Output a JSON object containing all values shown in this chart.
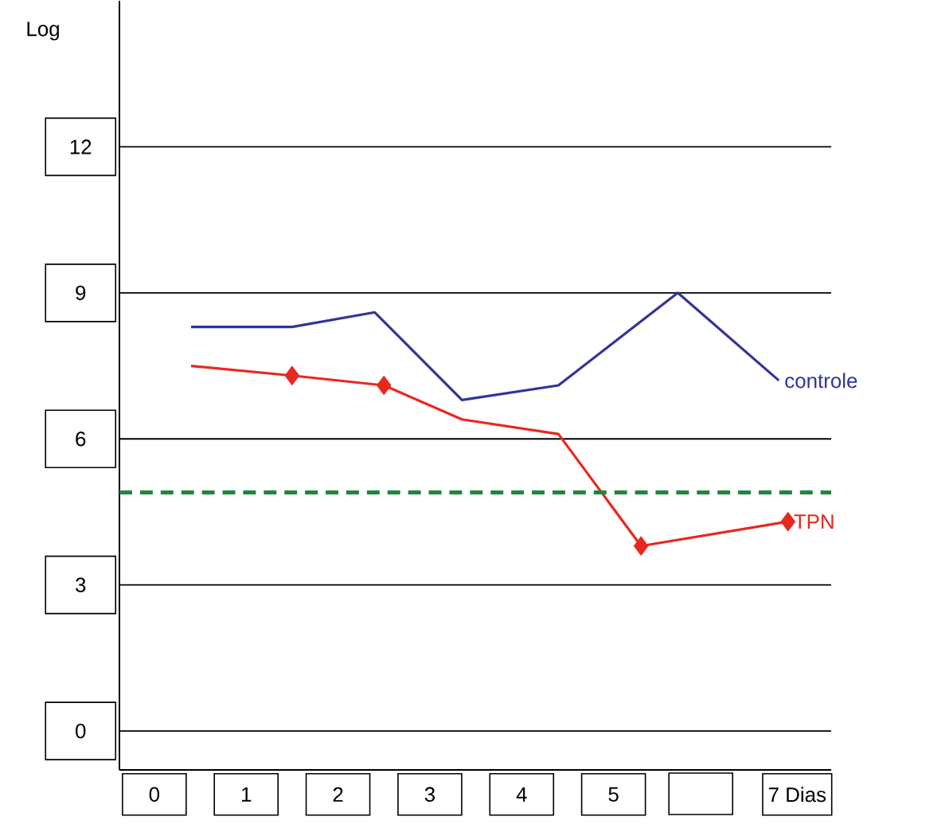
{
  "chart_data": {
    "type": "line",
    "ylabel": "Log",
    "xlim": [
      -0.38,
      7.37
    ],
    "ylim": [
      -0.8,
      15
    ],
    "xticks": [
      0,
      1,
      2,
      3,
      4,
      5,
      {
        "value": 7,
        "label": "7 Dias"
      }
    ],
    "yticks": [
      0,
      3,
      6,
      9,
      12
    ],
    "grid": "y",
    "series": [
      {
        "name": "controle",
        "color": "#333399",
        "marker": "none",
        "x": [
          0.4,
          1.5,
          2.4,
          3.35,
          4.4,
          5.7,
          6.8
        ],
        "values": [
          8.3,
          8.3,
          8.6,
          6.8,
          7.1,
          9.0,
          7.2
        ]
      },
      {
        "name": "TPN",
        "color": "#e8281e",
        "marker": "none",
        "x": [
          0.4,
          1.5,
          2.5,
          3.35,
          4.4,
          5.3,
          6.9
        ],
        "values": [
          7.5,
          7.3,
          7.1,
          6.4,
          6.1,
          3.8,
          4.3
        ]
      },
      {
        "type": "scatter",
        "color": "#e8281e",
        "marker": "diamond",
        "x": [
          1.5,
          2.5,
          5.3,
          6.9
        ],
        "values": [
          7.3,
          7.1,
          3.8,
          4.3
        ]
      }
    ],
    "ref_lines": [
      {
        "axis": "y",
        "value": 4.9,
        "color": "#1a8a3a",
        "line_style": "dashed"
      }
    ]
  }
}
